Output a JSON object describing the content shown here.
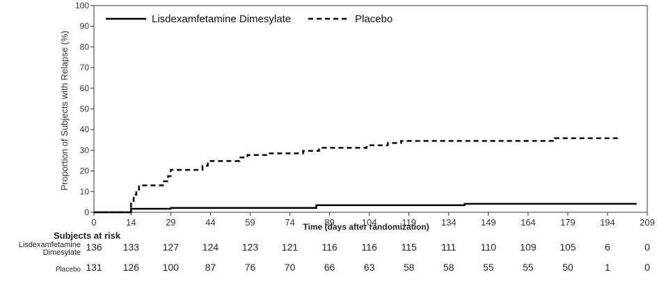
{
  "chart_data": {
    "type": "line",
    "xlabel": "Time (days after randomization)",
    "ylabel": "Proportion of Subjects with Relapse (%)",
    "xlim": [
      0,
      209
    ],
    "ylim": [
      0,
      100
    ],
    "x_ticks": [
      "0",
      "14",
      "29",
      "44",
      "59",
      "74",
      "89",
      "104",
      "119",
      "134",
      "149",
      "164",
      "179",
      "194",
      "209"
    ],
    "y_ticks": [
      "0",
      "10",
      "20",
      "30",
      "40",
      "50",
      "60",
      "70",
      "80",
      "90",
      "100"
    ],
    "legend_position": "top-left",
    "series": [
      {
        "name": "Lisdexamfetamine Dimesylate",
        "style": "solid",
        "color": "#000000",
        "x": [
          0,
          13,
          14,
          25,
          29,
          83,
          84,
          139,
          140,
          205
        ],
        "y": [
          0,
          0,
          1.7,
          1.7,
          2.1,
          2.1,
          3.4,
          3.4,
          4.1,
          4.1
        ]
      },
      {
        "name": "Placebo",
        "style": "dashed",
        "color": "#000000",
        "x": [
          0,
          13,
          14,
          15,
          16,
          17,
          22,
          26,
          28,
          29,
          36,
          41,
          43,
          45,
          51,
          55,
          58,
          60,
          66,
          76,
          79,
          83,
          85,
          99,
          103,
          109,
          111,
          113,
          116,
          119,
          171,
          174,
          198
        ],
        "y": [
          0,
          0,
          5,
          8.5,
          11,
          13,
          13,
          15,
          17.5,
          20.5,
          20.5,
          22.5,
          24.8,
          24.8,
          24.8,
          26.5,
          27.7,
          27.7,
          28.5,
          28.5,
          29.7,
          29.7,
          31.2,
          31.2,
          32.4,
          32.4,
          33.5,
          33.5,
          34.5,
          34.5,
          34.5,
          35.8,
          35.8
        ]
      }
    ]
  },
  "risk_table": {
    "title": "Subjects at risk",
    "rows": [
      {
        "label_line1": "Lisdexamfetamine",
        "label_line2": "Dimesylate",
        "values": [
          "136",
          "133",
          "127",
          "124",
          "123",
          "121",
          "116",
          "116",
          "115",
          "111",
          "110",
          "109",
          "105",
          "6",
          "0"
        ]
      },
      {
        "label_line1": "Placebo",
        "label_line2": "",
        "values": [
          "131",
          "126",
          "100",
          "87",
          "76",
          "70",
          "66",
          "63",
          "58",
          "58",
          "55",
          "55",
          "50",
          "1",
          "0"
        ]
      }
    ]
  }
}
